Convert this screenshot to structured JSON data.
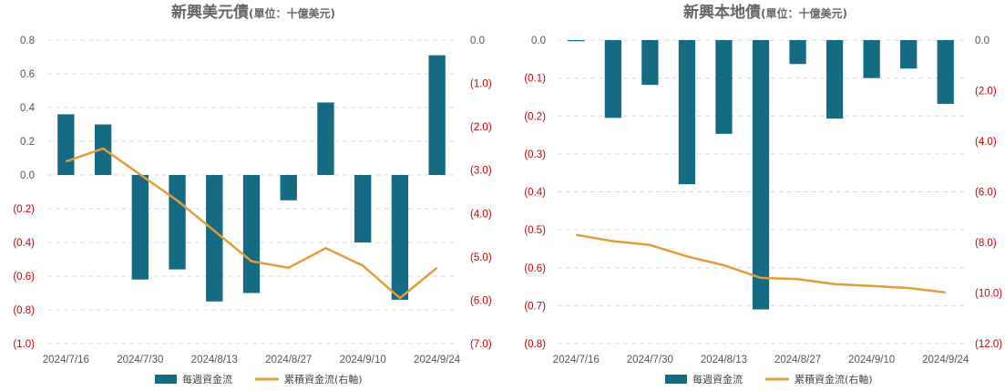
{
  "colors": {
    "bar": "#146b83",
    "line": "#e49b3a",
    "negative_tick": "#cc0000",
    "text": "#555555"
  },
  "legend": {
    "bar_label": "每週資金流",
    "line_label": "累積資金流(右軸)"
  },
  "chart_data": [
    {
      "type": "bar",
      "title": "新興美元債",
      "subtitle": "(單位：十億美元)",
      "x_tick_labels": [
        "2024/7/16",
        "2024/7/30",
        "2024/8/13",
        "2024/8/27",
        "2024/9/10",
        "2024/9/24"
      ],
      "left_axis": {
        "ylim": [
          -1.0,
          0.8
        ],
        "ticks": [
          0.8,
          0.6,
          0.4,
          0.2,
          0.0,
          -0.2,
          -0.4,
          -0.6,
          -0.8,
          -1.0
        ],
        "tick_labels": [
          "0.8",
          "0.6",
          "0.4",
          "0.2",
          "0.0",
          "(0.2)",
          "(0.4)",
          "(0.6)",
          "(0.8)",
          "(1.0)"
        ]
      },
      "right_axis": {
        "ylim": [
          -7.0,
          0.0
        ],
        "ticks": [
          0.0,
          -1.0,
          -2.0,
          -3.0,
          -4.0,
          -5.0,
          -6.0,
          -7.0
        ],
        "tick_labels": [
          "0.0",
          "(1.0)",
          "(2.0)",
          "(3.0)",
          "(4.0)",
          "(5.0)",
          "(6.0)",
          "(7.0)"
        ]
      },
      "series": [
        {
          "kind": "bar",
          "axis": "left",
          "values": [
            0.36,
            0.3,
            -0.62,
            -0.56,
            -0.75,
            -0.7,
            -0.15,
            0.43,
            -0.4,
            -0.74,
            0.71
          ]
        },
        {
          "kind": "line",
          "axis": "right",
          "values": [
            -2.8,
            -2.5,
            -3.1,
            -3.7,
            -4.4,
            -5.1,
            -5.25,
            -4.8,
            -5.2,
            -5.95,
            -5.25
          ]
        }
      ]
    },
    {
      "type": "bar",
      "title": "新興本地債",
      "subtitle": "(單位：十億美元)",
      "x_tick_labels": [
        "2024/7/16",
        "2024/7/30",
        "2024/8/13",
        "2024/8/27",
        "2024/9/10",
        "2024/9/24"
      ],
      "left_axis": {
        "ylim": [
          -0.8,
          0.0
        ],
        "ticks": [
          0.0,
          -0.1,
          -0.2,
          -0.3,
          -0.4,
          -0.5,
          -0.6,
          -0.7,
          -0.8
        ],
        "tick_labels": [
          "0.0",
          "(0.1)",
          "(0.2)",
          "(0.3)",
          "(0.4)",
          "(0.5)",
          "(0.6)",
          "(0.7)",
          "(0.8)"
        ]
      },
      "right_axis": {
        "ylim": [
          -12.0,
          0.0
        ],
        "ticks": [
          0.0,
          -2.0,
          -4.0,
          -6.0,
          -8.0,
          -10.0,
          -12.0
        ],
        "tick_labels": [
          "0.0",
          "(2.0)",
          "(4.0)",
          "(6.0)",
          "(8.0)",
          "(10.0)",
          "(12.0)"
        ]
      },
      "series": [
        {
          "kind": "bar",
          "axis": "left",
          "values": [
            -0.003,
            -0.205,
            -0.118,
            -0.38,
            -0.247,
            -0.71,
            -0.063,
            -0.207,
            -0.1,
            -0.075,
            -0.168
          ]
        },
        {
          "kind": "line",
          "axis": "right",
          "values": [
            -7.7,
            -7.95,
            -8.1,
            -8.55,
            -8.9,
            -9.4,
            -9.45,
            -9.65,
            -9.72,
            -9.8,
            -9.98
          ]
        }
      ]
    }
  ]
}
